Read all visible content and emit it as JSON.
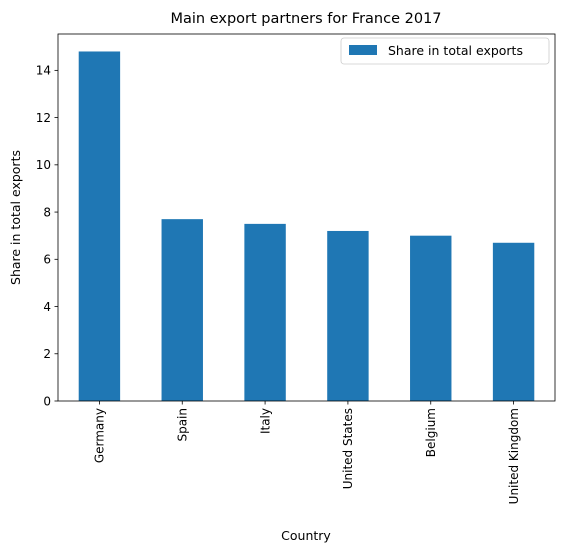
{
  "chart_data": {
    "type": "bar",
    "title": "Main export partners for France 2017",
    "xlabel": "Country",
    "ylabel": "Share in total exports",
    "categories": [
      "Germany",
      "Spain",
      "Italy",
      "United States",
      "Belgium",
      "United Kingdom"
    ],
    "series": [
      {
        "name": "Share in total exports",
        "values": [
          14.8,
          7.7,
          7.5,
          7.2,
          7.0,
          6.7
        ]
      }
    ],
    "yticks": [
      0,
      2,
      4,
      6,
      8,
      10,
      12,
      14
    ],
    "ylim": [
      0,
      15.54
    ],
    "grid": false,
    "legend_position": "top-right",
    "colors": {
      "bar": "#1f77b4",
      "axis": "#000000",
      "legend_border": "#cccccc"
    }
  }
}
